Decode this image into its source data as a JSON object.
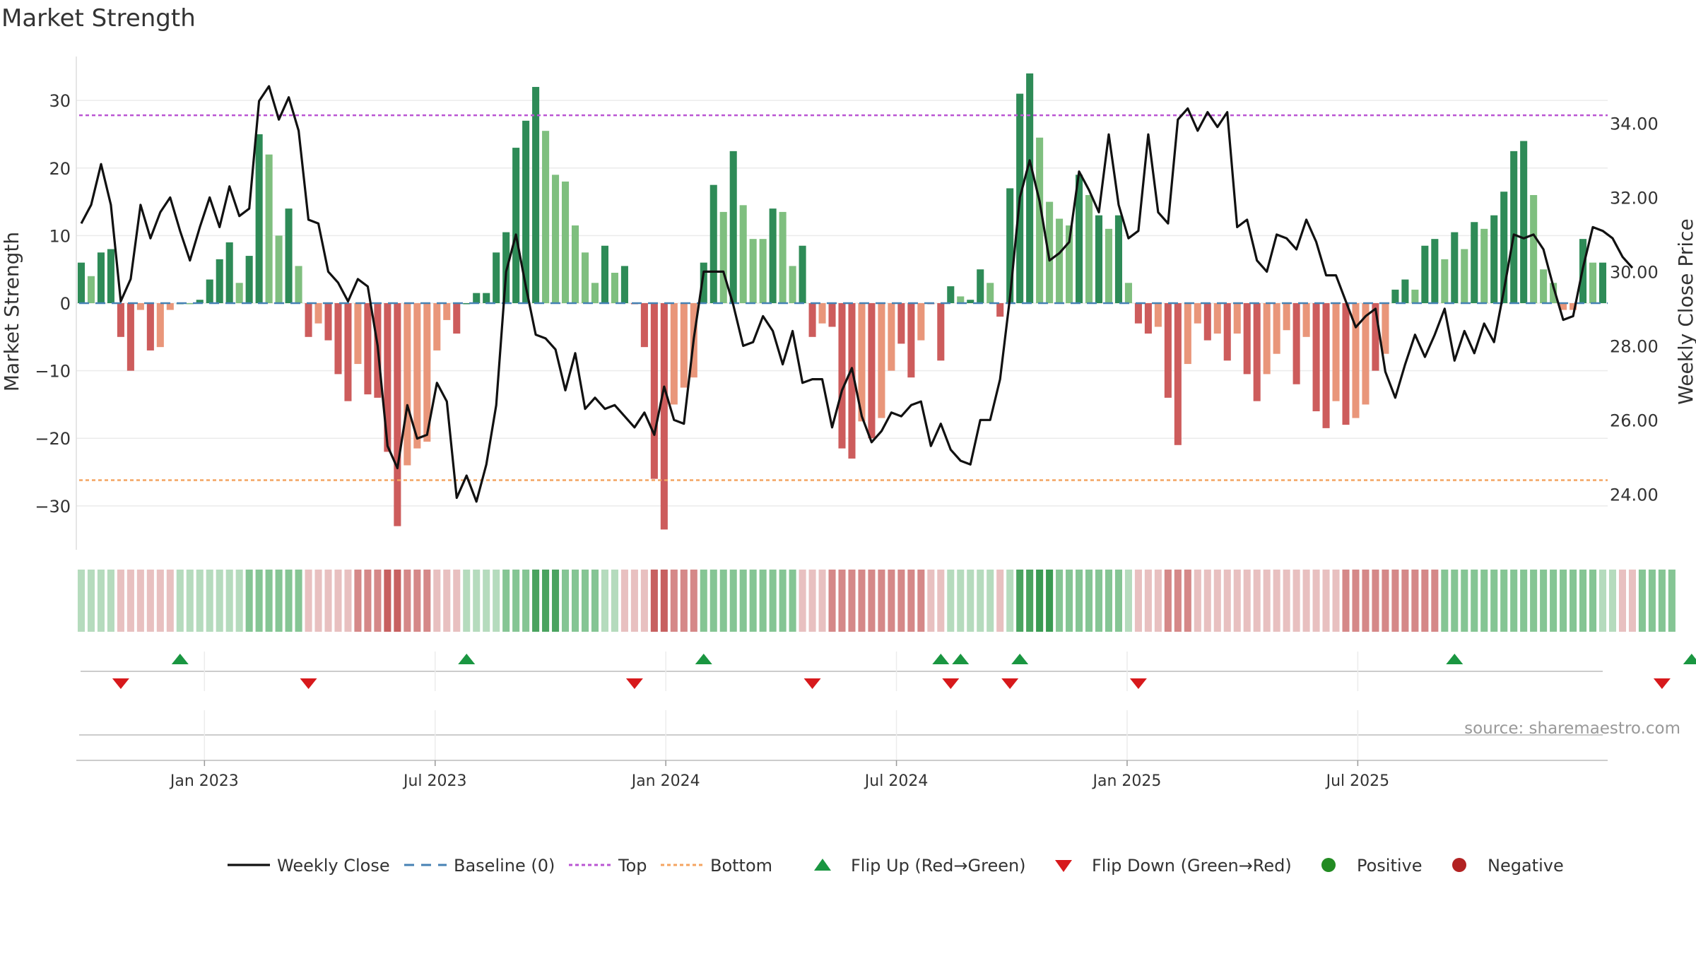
{
  "page": {
    "title": "Market Strength"
  },
  "colors": {
    "strong_green": "#2e8b57",
    "light_green": "#7fbf7f",
    "strong_red": "#cd5c5c",
    "light_red": "#e9967a",
    "top_line": "#ba55d3",
    "bottom_line": "#f4a460",
    "baseline": "#4682b4",
    "close_line": "#111111",
    "flip_up": "#1a9641",
    "flip_down": "#d7191c",
    "positive": "#228b22",
    "negative": "#b22222"
  },
  "chart_data": {
    "type": "bar+line",
    "title": "Market Strength",
    "ylabel": "Market Strength",
    "y2label": "Weekly Close Price",
    "ylim": [
      -36.5,
      36.5
    ],
    "y2lim": [
      22.5,
      35.8
    ],
    "yticks": [
      30,
      20,
      10,
      0,
      -10,
      -20,
      -30
    ],
    "ytick_labels": [
      "30",
      "20",
      "10",
      "0",
      "−10",
      "−20",
      "−30"
    ],
    "y2ticks": [
      34,
      32,
      30,
      28,
      26,
      24
    ],
    "y2tick_labels": [
      "34.00",
      "32.00",
      "30.00",
      "28.00",
      "26.00",
      "24.00"
    ],
    "xlim": [
      0,
      239
    ],
    "x_tick_labels": [
      "Jan 2023",
      "Jul 2023",
      "Jan 2024",
      "Jul 2024",
      "Jan 2025",
      "Jul 2025"
    ],
    "x_tick_weeks": [
      20,
      56,
      92,
      128,
      164,
      200
    ],
    "top_level": 27.8,
    "bottom_level": -26.2,
    "baseline_level": 0,
    "series_strength": [
      6,
      4,
      7.5,
      8,
      -5,
      -10,
      -1,
      -7,
      -6.5,
      -1,
      0,
      0,
      0.5,
      3.5,
      6.5,
      9,
      3,
      7,
      25,
      22,
      10,
      14,
      5.5,
      -5,
      -3,
      -5.5,
      -10.5,
      -14.5,
      -9,
      -13.5,
      -14,
      -22,
      -33,
      -24,
      -21.5,
      -20.5,
      -7,
      -2.5,
      -4.5,
      0,
      1.5,
      1.5,
      7.5,
      10.5,
      23,
      27,
      32,
      25.5,
      19,
      18,
      11.5,
      7.5,
      3,
      8.5,
      4.5,
      5.5,
      0,
      -6.5,
      -26,
      -33.5,
      -15,
      -12.5,
      -11,
      6,
      17.5,
      13.5,
      22.5,
      14.5,
      9.5,
      9.5,
      14,
      13.5,
      5.5,
      8.5,
      -5,
      -3,
      -3.5,
      -21.5,
      -23,
      -17.5,
      -20,
      -17,
      -10,
      -6,
      -11,
      -5.5,
      0,
      -8.5,
      2.5,
      1,
      0.5,
      5,
      3,
      -2,
      17,
      31,
      34,
      24.5,
      15,
      12.5,
      11.5,
      19,
      16,
      13,
      11,
      13,
      3,
      -3,
      -4.5,
      -3.5,
      -14,
      -21,
      -9,
      -3,
      -5.5,
      -4.5,
      -8.5,
      -4.5,
      -10.5,
      -14.5,
      -10.5,
      -7.5,
      -4,
      -12,
      -5,
      -16,
      -18.5,
      -14.5,
      -18,
      -17,
      -15,
      -10,
      -7.5,
      2,
      3.5,
      2,
      8.5,
      9.5,
      6.5,
      10.5,
      8,
      12,
      11,
      13,
      16.5,
      22.5,
      24,
      16,
      5,
      3,
      -1,
      -1,
      9.5,
      6,
      6
    ],
    "series_strength_color": [
      "sg",
      "lg",
      "sg",
      "sg",
      "sr",
      "sr",
      "lr",
      "sr",
      "lr",
      "lr",
      "sg",
      "lg",
      "sg",
      "sg",
      "sg",
      "sg",
      "lg",
      "sg",
      "sg",
      "lg",
      "lg",
      "sg",
      "lg",
      "sr",
      "lr",
      "sr",
      "sr",
      "sr",
      "lr",
      "sr",
      "sr",
      "sr",
      "sr",
      "lr",
      "lr",
      "lr",
      "lr",
      "lr",
      "sr",
      "sg",
      "sg",
      "sg",
      "sg",
      "sg",
      "sg",
      "sg",
      "sg",
      "lg",
      "lg",
      "lg",
      "lg",
      "lg",
      "lg",
      "sg",
      "lg",
      "sg",
      "sr",
      "sr",
      "sr",
      "sr",
      "lr",
      "lr",
      "lr",
      "sg",
      "sg",
      "lg",
      "sg",
      "lg",
      "lg",
      "lg",
      "sg",
      "lg",
      "lg",
      "sg",
      "sr",
      "lr",
      "sr",
      "sr",
      "sr",
      "lr",
      "sr",
      "lr",
      "lr",
      "sr",
      "sr",
      "lr",
      "sr",
      "sr",
      "sg",
      "lg",
      "sg",
      "sg",
      "lg",
      "sr",
      "sg",
      "sg",
      "sg",
      "lg",
      "lg",
      "lg",
      "lg",
      "sg",
      "lg",
      "sg",
      "lg",
      "sg",
      "lg",
      "sr",
      "sr",
      "lr",
      "sr",
      "sr",
      "lr",
      "lr",
      "sr",
      "lr",
      "sr",
      "lr",
      "sr",
      "sr",
      "lr",
      "lr",
      "lr",
      "sr",
      "lr",
      "sr",
      "sr",
      "lr",
      "sr",
      "lr",
      "lr",
      "sr",
      "lr",
      "sg",
      "sg",
      "lg",
      "sg",
      "sg",
      "lg",
      "sg",
      "lg",
      "sg",
      "lg",
      "sg",
      "sg",
      "sg",
      "sg",
      "lg",
      "lg",
      "lg",
      "lr",
      "lr",
      "sg",
      "lg",
      "sg"
    ],
    "weekly_close": [
      31.3,
      31.8,
      32.9,
      31.8,
      29.2,
      29.8,
      31.8,
      30.9,
      31.6,
      32.0,
      31.1,
      30.3,
      31.2,
      32.0,
      31.2,
      32.3,
      31.5,
      31.7,
      34.6,
      35.0,
      34.1,
      34.7,
      33.8,
      31.4,
      31.3,
      30.0,
      29.7,
      29.2,
      29.8,
      29.6,
      28.0,
      25.3,
      24.7,
      26.4,
      25.5,
      25.6,
      27.0,
      26.5,
      23.9,
      24.5,
      23.8,
      24.8,
      26.4,
      30.0,
      31.0,
      29.6,
      28.3,
      28.2,
      27.9,
      26.8,
      27.8,
      26.3,
      26.6,
      26.3,
      26.4,
      26.1,
      25.8,
      26.2,
      25.6,
      26.9,
      26.0,
      25.9,
      28.2,
      30.0,
      30.0,
      30.0,
      29.1,
      28.0,
      28.1,
      28.8,
      28.4,
      27.5,
      28.4,
      27.0,
      27.1,
      27.1,
      25.8,
      26.8,
      27.4,
      26.1,
      25.4,
      25.7,
      26.2,
      26.1,
      26.4,
      26.5,
      25.3,
      25.9,
      25.2,
      24.9,
      24.8,
      26.0,
      26.0,
      27.1,
      29.3,
      32.0,
      33.0,
      31.9,
      30.3,
      30.5,
      30.8,
      32.7,
      32.2,
      31.6,
      33.7,
      31.8,
      30.9,
      31.1,
      33.7,
      31.6,
      31.3,
      34.1,
      34.4,
      33.8,
      34.3,
      33.9,
      34.3,
      31.2,
      31.4,
      30.3,
      30.0,
      31.0,
      30.9,
      30.6,
      31.4,
      30.8,
      29.9,
      29.9,
      29.2,
      28.5,
      28.8,
      29.0,
      27.3,
      26.6,
      27.5,
      28.3,
      27.7,
      28.3,
      29.0,
      27.6,
      28.4,
      27.8,
      28.6,
      28.1,
      29.5,
      31.0,
      30.9,
      31.0,
      30.6,
      29.6,
      28.7,
      28.8,
      30.1,
      31.2,
      31.1,
      30.9,
      30.4,
      30.1
    ],
    "strength_strip": [
      2,
      2,
      2,
      2,
      3,
      3,
      3,
      3,
      3,
      3,
      2,
      2,
      2,
      2,
      2,
      2,
      2,
      1,
      1,
      1,
      1,
      1,
      1,
      3,
      3,
      3,
      3,
      3,
      4,
      4,
      4,
      4,
      4,
      4,
      4,
      4,
      3,
      3,
      3,
      2,
      2,
      2,
      2,
      1,
      1,
      1,
      0,
      0,
      0,
      1,
      1,
      1,
      1,
      2,
      2,
      3,
      3,
      3,
      3,
      4,
      4,
      4,
      4,
      1,
      1,
      1,
      1,
      1,
      1,
      1,
      1,
      1,
      1,
      3,
      3,
      3,
      4,
      4,
      4,
      4,
      4,
      4,
      4,
      4,
      4,
      4,
      3,
      3,
      2,
      2,
      2,
      2,
      2,
      3,
      2,
      0,
      0,
      0,
      1,
      1,
      1,
      1,
      1,
      1,
      1,
      1,
      2,
      3,
      3,
      3,
      4,
      4,
      4,
      3,
      3,
      3,
      3,
      3,
      3,
      3,
      3,
      3,
      3,
      3,
      3,
      3,
      3,
      3,
      4,
      4,
      4,
      4,
      4,
      4,
      4,
      4,
      4,
      4,
      1,
      1,
      1,
      1,
      1,
      1,
      1,
      1,
      1,
      1,
      1,
      1,
      1,
      1,
      1,
      1,
      2,
      2,
      3,
      3,
      1,
      1,
      1,
      1
    ],
    "flip_up_weeks": [
      10,
      39,
      63,
      87,
      89,
      95,
      139,
      163
    ],
    "flip_down_weeks": [
      4,
      23,
      56,
      74,
      88,
      94,
      107,
      160
    ],
    "legend": [
      {
        "label": "Weekly Close",
        "kind": "line"
      },
      {
        "label": "Baseline (0)",
        "kind": "dash"
      },
      {
        "label": "Top",
        "kind": "dotted"
      },
      {
        "label": "Bottom",
        "kind": "dotted"
      },
      {
        "label": "Flip Up (Red→Green)",
        "kind": "up"
      },
      {
        "label": "Flip Down (Green→Red)",
        "kind": "down"
      },
      {
        "label": "Positive",
        "kind": "dot"
      },
      {
        "label": "Negative",
        "kind": "dot"
      }
    ],
    "source": "source: sharemaestro.com"
  }
}
